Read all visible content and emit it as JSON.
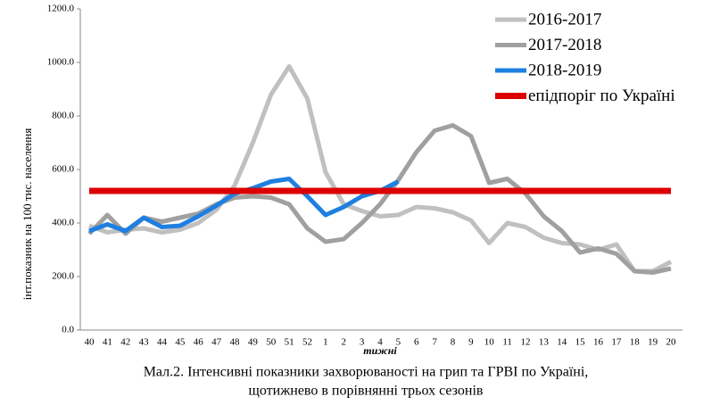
{
  "chart_data": {
    "type": "line",
    "y_label": "інт.показник на 100 тис. населення",
    "x_label": "тижні",
    "caption": [
      "Мал.2. Інтенсивні показники захворюваності на грип та ГРВІ по Україні,",
      "щотижнево в порівнянні трьох сезонів"
    ],
    "categories": [
      "40",
      "41",
      "42",
      "43",
      "44",
      "45",
      "46",
      "47",
      "48",
      "49",
      "50",
      "51",
      "52",
      "1",
      "2",
      "3",
      "4",
      "5",
      "6",
      "7",
      "8",
      "9",
      "10",
      "11",
      "12",
      "13",
      "14",
      "15",
      "16",
      "17",
      "18",
      "19",
      "20"
    ],
    "ylim": [
      0,
      1200
    ],
    "yticks": [
      {
        "value": 0,
        "label": "0.0"
      },
      {
        "value": 200,
        "label": "200.0"
      },
      {
        "value": 400,
        "label": "400.0"
      },
      {
        "value": 600,
        "label": "600.0"
      },
      {
        "value": 800,
        "label": "800.0"
      },
      {
        "value": 1000,
        "label": "1000.0"
      },
      {
        "value": 1200,
        "label": "1200.0"
      }
    ],
    "legend": "top-right",
    "series": [
      {
        "name": "2016-2017",
        "color": "#c0c0c0",
        "width": 5,
        "values": [
          390,
          365,
          375,
          380,
          365,
          375,
          400,
          450,
          540,
          700,
          880,
          985,
          865,
          590,
          470,
          445,
          425,
          430,
          460,
          455,
          440,
          410,
          325,
          400,
          385,
          345,
          325,
          320,
          300,
          320,
          220,
          220,
          255
        ]
      },
      {
        "name": "2017-2018",
        "color": "#a0a0a0",
        "width": 5,
        "values": [
          360,
          430,
          360,
          420,
          405,
          420,
          435,
          470,
          495,
          500,
          495,
          470,
          380,
          330,
          340,
          400,
          470,
          560,
          665,
          745,
          765,
          725,
          550,
          565,
          510,
          425,
          370,
          290,
          305,
          285,
          220,
          215,
          230
        ]
      },
      {
        "name": "2018-2019",
        "color": "#1e7fe0",
        "width": 5,
        "values": [
          370,
          395,
          370,
          420,
          385,
          390,
          425,
          465,
          510,
          530,
          555,
          565,
          500,
          430,
          460,
          500,
          520,
          555,
          null,
          null,
          null,
          null,
          null,
          null,
          null,
          null,
          null,
          null,
          null,
          null,
          null,
          null,
          null
        ]
      },
      {
        "name": "епідпоріг по Україні",
        "color": "#dd0000",
        "width": 7,
        "values": [
          520,
          520,
          520,
          520,
          520,
          520,
          520,
          520,
          520,
          520,
          520,
          520,
          520,
          520,
          520,
          520,
          520,
          520,
          520,
          520,
          520,
          520,
          520,
          520,
          520,
          520,
          520,
          520,
          520,
          520,
          520,
          520,
          520
        ]
      }
    ]
  }
}
